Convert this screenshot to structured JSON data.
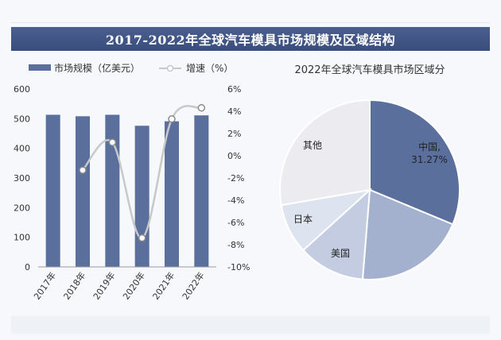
{
  "header": {
    "title": "2017-2022年全球汽车模具市场规模及区域结构"
  },
  "colors": {
    "bar": "#5a6f9c",
    "line": "#c8c8c8",
    "pie_china": "#5a6f9c",
    "pie_other_blue": "#a3b1cf",
    "pie_usa": "#c3cce0",
    "pie_japan": "#dde3ef",
    "pie_other": "#ececf0",
    "title_bar": "#3f5485"
  },
  "chart_data": [
    {
      "type": "bar",
      "categories": [
        "2017年",
        "2018年",
        "2019年",
        "2020年",
        "2021年",
        "2022年"
      ],
      "series": [
        {
          "name": "市场规模（亿美元）",
          "type": "bar",
          "axis": "left",
          "values": [
            513,
            508,
            513,
            476,
            491,
            511
          ]
        },
        {
          "name": "增速（%）",
          "type": "line",
          "axis": "right",
          "values": [
            null,
            -1.3,
            1.2,
            -7.4,
            3.3,
            4.3
          ]
        }
      ],
      "ylim_left": [
        0,
        600
      ],
      "yticks_left": [
        "0",
        "100",
        "200",
        "300",
        "400",
        "500",
        "600"
      ],
      "ylim_right": [
        -10,
        6
      ],
      "yticks_right": [
        "-10%",
        "-8%",
        "-6%",
        "-4%",
        "-2%",
        "0%",
        "2%",
        "4%",
        "6%"
      ],
      "legend_position": "top-left"
    },
    {
      "type": "pie",
      "title": "2022年全球汽车模具市场区域分",
      "slices": [
        {
          "label": "中国,",
          "value_label": "31.27%",
          "value": 31.27
        },
        {
          "label": "",
          "value": 20.0
        },
        {
          "label": "美国",
          "value": 12.0
        },
        {
          "label": "日本",
          "value": 9.0
        },
        {
          "label": "其他",
          "value": 27.73
        }
      ]
    }
  ]
}
